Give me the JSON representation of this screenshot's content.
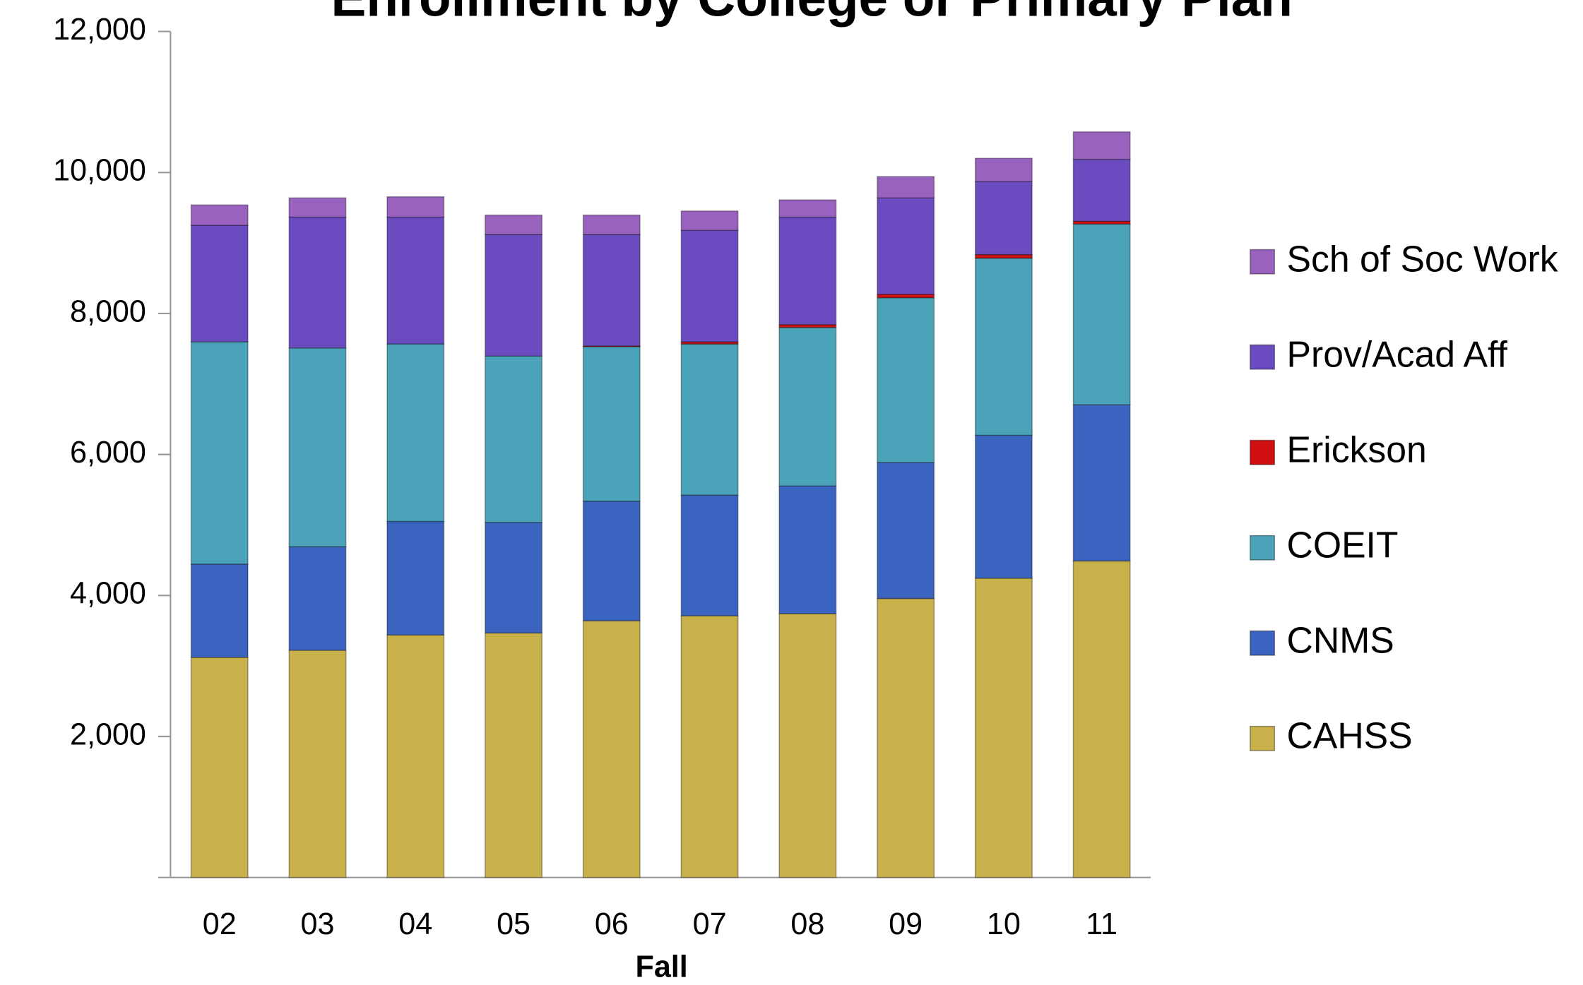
{
  "chart_data": {
    "type": "stacked_bar",
    "title": "Enrollment by College or Primary Plan",
    "x_label": "Fall",
    "categories": [
      "02",
      "03",
      "04",
      "05",
      "06",
      "07",
      "08",
      "09",
      "10",
      "11"
    ],
    "series": [
      {
        "name": "CAHSS",
        "color": "#c8b04a",
        "values": [
          3122,
          3223,
          3439,
          3468,
          3640,
          3712,
          3741,
          3957,
          4245,
          4489
        ]
      },
      {
        "name": "CNMS",
        "color": "#3b63c0",
        "values": [
          1324,
          1468,
          1611,
          1568,
          1698,
          1712,
          1813,
          1928,
          2028,
          2216
        ]
      },
      {
        "name": "COEIT",
        "color": "#4aa3b8",
        "values": [
          3151,
          2820,
          2518,
          2360,
          2192,
          2143,
          2248,
          2338,
          2512,
          2564
        ]
      },
      {
        "name": "Erickson",
        "color": "#d01010",
        "values": [
          0,
          0,
          0,
          0,
          10,
          30,
          40,
          50,
          50,
          40
        ]
      },
      {
        "name": "Prov/Acad Aff",
        "color": "#6a4cc0",
        "values": [
          1655,
          1856,
          1799,
          1726,
          1582,
          1583,
          1525,
          1367,
          1036,
          878
        ]
      },
      {
        "name": "Sch of Soc Work",
        "color": "#9a62bf",
        "values": [
          288,
          273,
          288,
          274,
          274,
          273,
          245,
          302,
          330,
          389
        ]
      }
    ],
    "ylim": [
      0,
      12000
    ],
    "yticks": [
      {
        "value": 2000,
        "label": "2,000"
      },
      {
        "value": 4000,
        "label": "4,000"
      },
      {
        "value": 6000,
        "label": "6,000"
      },
      {
        "value": 8000,
        "label": "8,000"
      },
      {
        "value": 10000,
        "label": "10,000"
      },
      {
        "value": 12000,
        "label": "12,000"
      }
    ],
    "grid": false,
    "legend": "right"
  }
}
